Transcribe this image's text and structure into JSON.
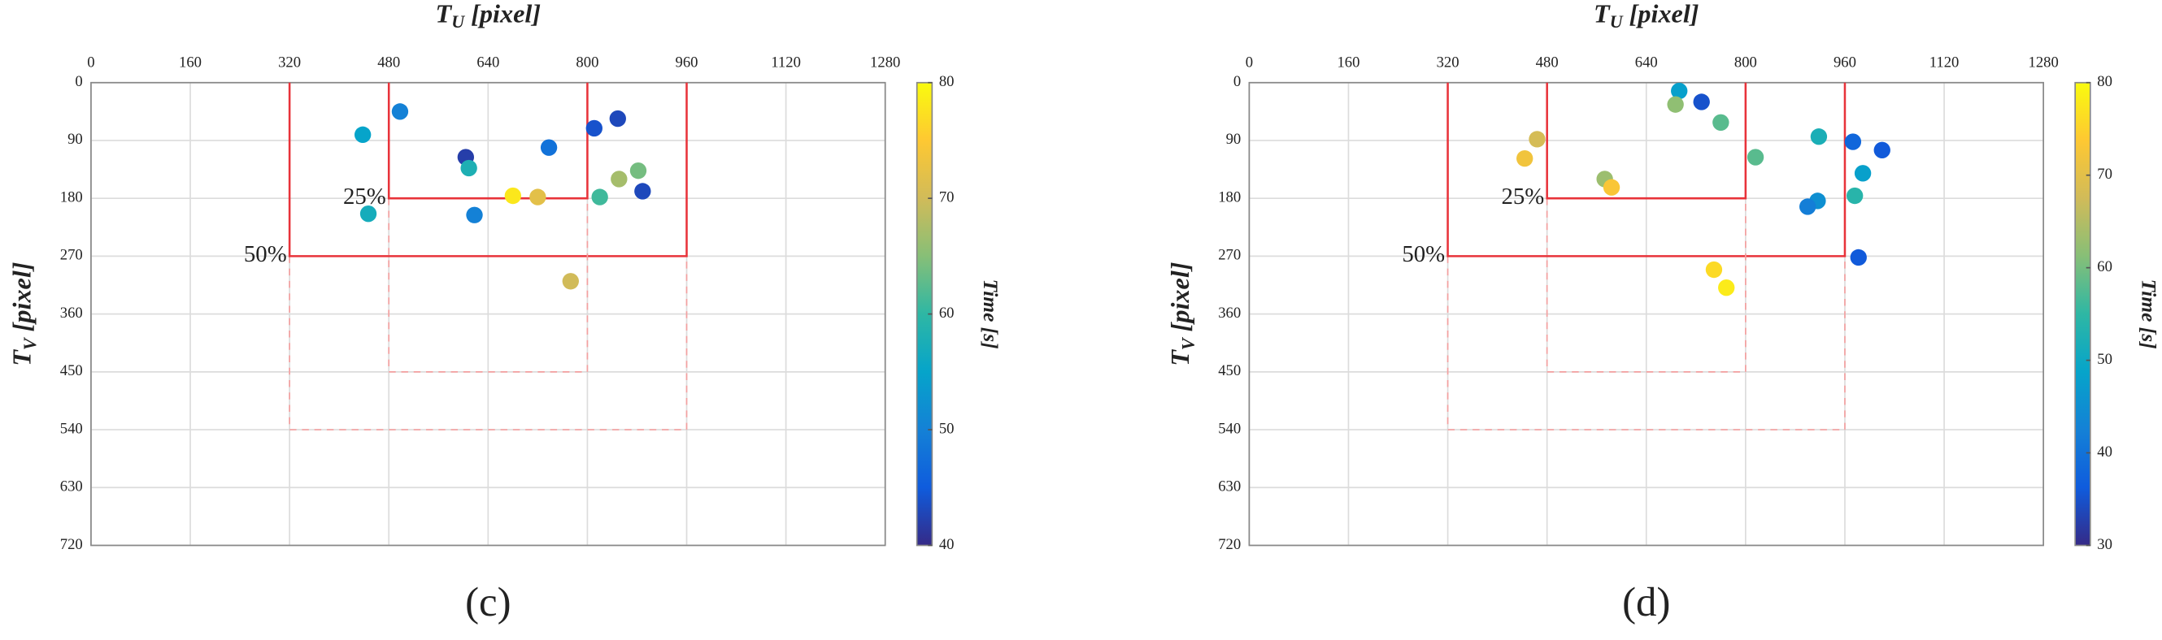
{
  "chart_data": [
    {
      "type": "scatter",
      "panel_label": "(c)",
      "xlabel": [
        "T",
        "U",
        " [pixel]"
      ],
      "ylabel": [
        "T",
        "V",
        " [pixel]"
      ],
      "colorbar_label": "Time [s]",
      "xlim": [
        0,
        1280
      ],
      "xticks": [
        0,
        160,
        320,
        480,
        640,
        800,
        960,
        1120,
        1280
      ],
      "ylim": [
        0,
        720
      ],
      "yticks": [
        0,
        90,
        180,
        270,
        360,
        450,
        540,
        630,
        720
      ],
      "y_inverted": true,
      "grid": true,
      "clim": [
        40,
        80
      ],
      "cticks": [
        40,
        50,
        60,
        70,
        80
      ],
      "regions": [
        {
          "label": "50%",
          "x": [
            320,
            960
          ],
          "y": [
            0,
            270
          ],
          "y_dashed": 540
        },
        {
          "label": "25%",
          "x": [
            480,
            800
          ],
          "y": [
            0,
            180
          ],
          "y_dashed": 450
        }
      ],
      "x": [
        438,
        498,
        604,
        609,
        738,
        447,
        618,
        680,
        720,
        811,
        849,
        882,
        851,
        820,
        889,
        773
      ],
      "y": [
        81,
        45,
        116,
        133,
        101,
        204,
        206,
        176,
        178,
        71,
        56,
        137,
        150,
        178,
        169,
        309
      ],
      "time": [
        55,
        50,
        42,
        58,
        48,
        57,
        50,
        78,
        72,
        44,
        43,
        64,
        67,
        61,
        43,
        70
      ]
    },
    {
      "type": "scatter",
      "panel_label": "(d)",
      "xlabel": [
        "T",
        "U",
        " [pixel]"
      ],
      "ylabel": [
        "T",
        "V",
        " [pixel]"
      ],
      "colorbar_label": "Time [s]",
      "xlim": [
        0,
        1280
      ],
      "xticks": [
        0,
        160,
        320,
        480,
        640,
        800,
        960,
        1120,
        1280
      ],
      "ylim": [
        0,
        720
      ],
      "yticks": [
        0,
        90,
        180,
        270,
        360,
        450,
        540,
        630,
        720
      ],
      "y_inverted": true,
      "grid": true,
      "clim": [
        30,
        80
      ],
      "cticks": [
        30,
        40,
        50,
        60,
        70,
        80
      ],
      "regions": [
        {
          "label": "50%",
          "x": [
            320,
            960
          ],
          "y": [
            0,
            270
          ],
          "y_dashed": 540
        },
        {
          "label": "25%",
          "x": [
            480,
            800
          ],
          "y": [
            0,
            180
          ],
          "y_dashed": 450
        }
      ],
      "x": [
        693,
        729,
        687,
        760,
        464,
        444,
        816,
        918,
        973,
        1020,
        989,
        573,
        584,
        976,
        916,
        900,
        982,
        749,
        769
      ],
      "y": [
        13,
        30,
        34,
        62,
        88,
        118,
        116,
        84,
        92,
        105,
        141,
        150,
        163,
        176,
        184,
        193,
        272,
        291,
        319
      ],
      "time": [
        48,
        35,
        62,
        58,
        68,
        72,
        58,
        52,
        38,
        36,
        48,
        63,
        73,
        54,
        45,
        42,
        36,
        76,
        78
      ]
    }
  ]
}
